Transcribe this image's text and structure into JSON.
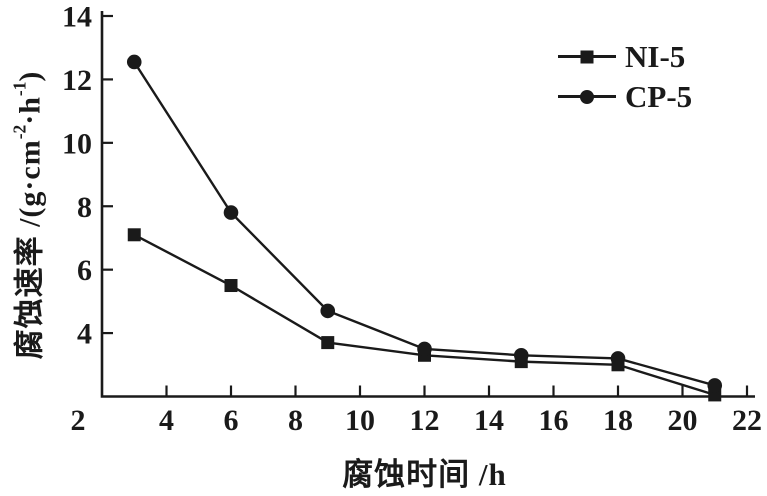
{
  "figure": {
    "background": "#ffffff",
    "ink_color": "#1a1a1a"
  },
  "chart_data": {
    "type": "line",
    "title": "",
    "xlabel": "腐蚀时间 /h",
    "ylabel": "腐蚀速率 /(g·cm⁻²·h⁻¹)",
    "ylabel_parts": [
      {
        "text": "腐蚀速率 /(g·cm",
        "sup": false
      },
      {
        "text": "-2",
        "sup": true
      },
      {
        "text": "·h",
        "sup": false
      },
      {
        "text": "-1",
        "sup": true
      },
      {
        "text": ")",
        "sup": false
      }
    ],
    "x": [
      3,
      6,
      9,
      12,
      15,
      18,
      21
    ],
    "series": [
      {
        "name": "NI-5",
        "marker": "square",
        "values": [
          7.1,
          5.5,
          3.7,
          3.3,
          3.1,
          3.0,
          2.05
        ]
      },
      {
        "name": "CP-5",
        "marker": "circle",
        "values": [
          12.55,
          7.8,
          4.7,
          3.5,
          3.3,
          3.2,
          2.35
        ]
      }
    ],
    "xlim": [
      2,
      22
    ],
    "ylim": [
      2,
      14
    ],
    "xticks": [
      2,
      4,
      6,
      8,
      10,
      12,
      14,
      16,
      18,
      20,
      22
    ],
    "xtick_labels": [
      "2",
      "4",
      "6",
      "8",
      "10",
      "12",
      "14",
      "16",
      "18",
      "20",
      "22"
    ],
    "yticks": [
      4,
      6,
      8,
      10,
      12,
      14
    ],
    "ytick_labels": [
      "4",
      "6",
      "8",
      "10",
      "12",
      "14"
    ],
    "grid": false,
    "legend": {
      "position": "top-right"
    }
  }
}
